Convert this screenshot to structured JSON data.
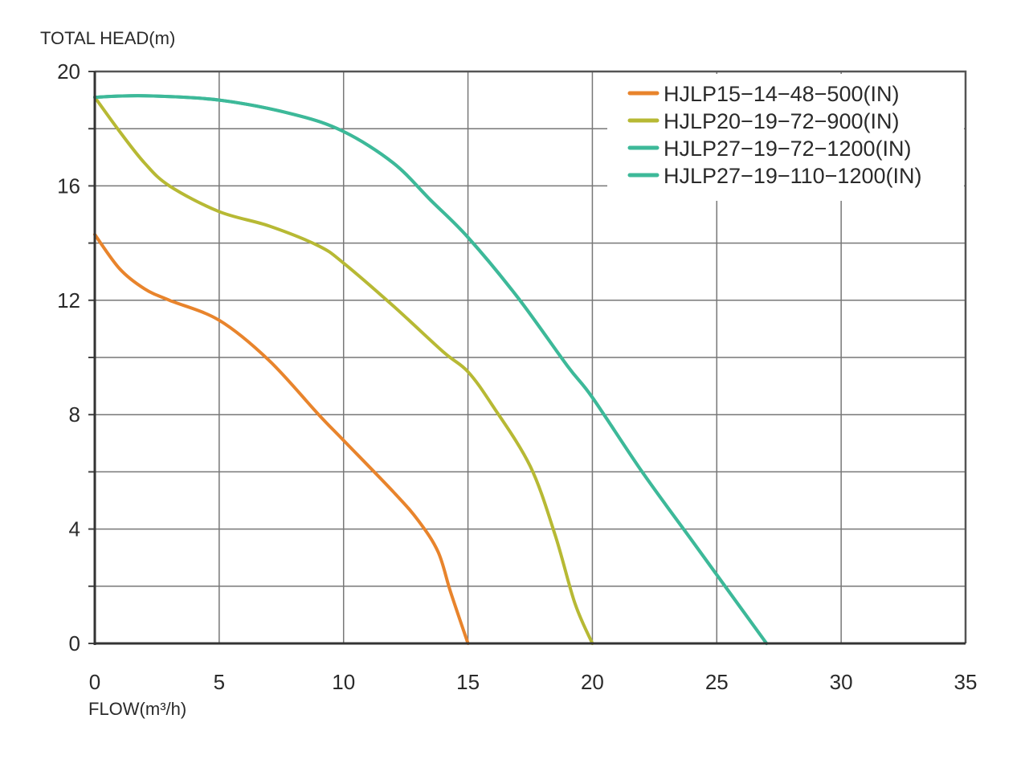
{
  "chart_data": {
    "type": "line",
    "title": "",
    "ylabel": "TOTAL HEAD(m)",
    "xlabel": "FLOW(m³/h)",
    "xlim": [
      0,
      35
    ],
    "ylim": [
      0,
      20
    ],
    "xticks": [
      0,
      5,
      10,
      15,
      20,
      25,
      30,
      35
    ],
    "yticks": [
      0,
      4,
      8,
      12,
      16,
      20
    ],
    "ygrid_step": 2,
    "grid": true,
    "legend_position": "top-right",
    "series": [
      {
        "name": "HJLP15−14−48−500(IN)",
        "color": "#E8842C",
        "x": [
          0,
          1,
          2,
          3,
          5,
          7,
          9,
          10,
          12,
          13,
          13.8,
          14.3,
          15
        ],
        "y": [
          14.3,
          13.1,
          12.4,
          12.0,
          11.3,
          9.9,
          8.0,
          7.1,
          5.3,
          4.3,
          3.2,
          1.8,
          0
        ]
      },
      {
        "name": "HJLP20−19−72−900(IN)",
        "color": "#B7B934",
        "x": [
          0,
          1,
          2,
          3,
          5,
          7,
          9,
          10,
          12,
          14,
          15,
          16,
          17.5,
          18.5,
          19.3,
          20
        ],
        "y": [
          19.1,
          17.9,
          16.8,
          16.0,
          15.1,
          14.6,
          13.9,
          13.3,
          11.8,
          10.2,
          9.5,
          8.3,
          6.2,
          3.8,
          1.4,
          0
        ]
      },
      {
        "name": "HJLP27−19−72−1200(IN)",
        "color": "#3DB999",
        "x": [
          0,
          2,
          5,
          8,
          10,
          12,
          13.5,
          15,
          17,
          19,
          20,
          22,
          24,
          25,
          27
        ],
        "y": [
          19.1,
          19.15,
          19.0,
          18.5,
          17.9,
          16.8,
          15.5,
          14.2,
          12.1,
          9.7,
          8.6,
          6.0,
          3.6,
          2.4,
          0
        ]
      },
      {
        "name": "HJLP27−19−110−1200(IN)",
        "color": "#3DB999",
        "x": [
          0,
          2,
          5,
          8,
          10,
          12,
          13.5,
          15,
          17,
          19,
          20,
          22,
          24,
          25,
          27
        ],
        "y": [
          19.1,
          19.15,
          19.0,
          18.5,
          17.9,
          16.8,
          15.5,
          14.2,
          12.1,
          9.7,
          8.6,
          6.0,
          3.6,
          2.4,
          0
        ]
      }
    ]
  }
}
